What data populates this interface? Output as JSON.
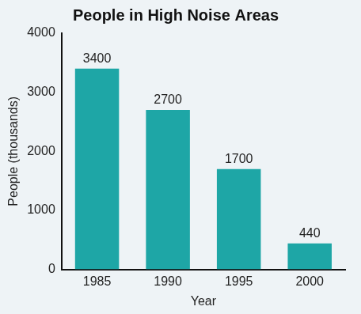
{
  "chart_data": {
    "type": "bar",
    "title": "People in High Noise Areas",
    "x_label": "Year",
    "y_label": "People (thousands)",
    "categories": [
      "1985",
      "1990",
      "1995",
      "2000"
    ],
    "values": [
      3400,
      2700,
      1700,
      440
    ],
    "color": "#1ea6a6",
    "ylim": [
      0,
      4000
    ],
    "yticks": [
      0,
      1000,
      2000,
      3000,
      4000
    ],
    "grid": false,
    "data_labels": true
  }
}
